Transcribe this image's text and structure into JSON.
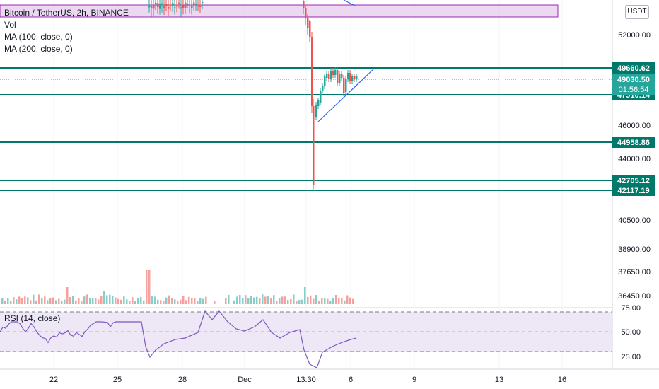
{
  "header": {
    "symbol_line": "Bitcoin / TetherUS, 2h, BINANCE",
    "vol_label": "Vol",
    "ma100_label": "MA (100, close, 0)",
    "ma200_label": "MA (200, close, 0)",
    "currency_badge": "USDT",
    "rsi_label": "RSI (14, close)"
  },
  "colors": {
    "up": "#26a69a",
    "down": "#ef5350",
    "level_line": "#00796b",
    "zone_fill": "#e1bee7",
    "zone_border": "#9c27b0",
    "trendline": "#2962ff",
    "rsi_line": "#7e57c2",
    "rsi_band": "#ede7f6"
  },
  "chart_data": [
    {
      "type": "line",
      "title": "Bitcoin / TetherUS, 2h, BINANCE",
      "y_axis_ticks": [
        "52000.00",
        "46000.00",
        "44000.00",
        "40500.00",
        "38900.00",
        "37650.00",
        "36450.00"
      ],
      "x_axis_ticks": [
        "22",
        "25",
        "28",
        "Dec",
        "13:30",
        "6",
        "9",
        "13",
        "16"
      ],
      "price_levels": [
        49660.62,
        47910.14,
        44958.86,
        42705.12,
        42117.19
      ],
      "price_level_labels": [
        "49660.62",
        "47910.14",
        "44958.86",
        "42705.12",
        "42117.19"
      ],
      "current_price": "49030.50",
      "countdown": "01:56:54",
      "annotations": [
        "resistance zone (purple box)",
        "ascending triangle trendline"
      ]
    },
    {
      "type": "line",
      "title": "RSI (14, close)",
      "y_axis_ticks": [
        "75.00",
        "50.00",
        "25.00"
      ],
      "band": [
        30,
        70
      ]
    }
  ]
}
